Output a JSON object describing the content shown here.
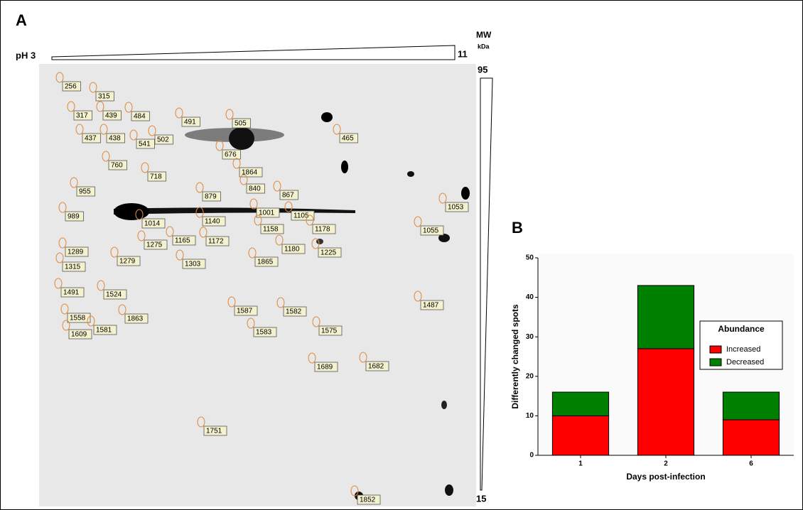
{
  "panel_a": {
    "label": "A",
    "ph_start": "pH 3",
    "ph_end": "11",
    "mw_title": "MW",
    "mw_unit": "kDa",
    "mw_top": "95",
    "mw_bottom": "15",
    "spots": [
      "256",
      "315",
      "317",
      "439",
      "484",
      "437",
      "438",
      "541",
      "502",
      "491",
      "505",
      "465",
      "760",
      "718",
      "676",
      "1864",
      "955",
      "879",
      "840",
      "867",
      "989",
      "1014",
      "1001",
      "1105",
      "1053",
      "1140",
      "1158",
      "1178",
      "1055",
      "1165",
      "1172",
      "1275",
      "1180",
      "1225",
      "1289",
      "1279",
      "1303",
      "1865",
      "1315",
      "1491",
      "1524",
      "1487",
      "1587",
      "1582",
      "1863",
      "1558",
      "1575",
      "1583",
      "1581",
      "1609",
      "1689",
      "1682",
      "1751",
      "1852"
    ]
  },
  "chart_data": {
    "type": "stacked_bar",
    "panel_label": "B",
    "ylabel": "Differently changed spots",
    "xlabel": "Days post-infection",
    "categories": [
      "1",
      "2",
      "6"
    ],
    "series": [
      {
        "name": "Increased",
        "color": "#ff0000",
        "values": [
          10,
          27,
          9
        ]
      },
      {
        "name": "Decreased",
        "color": "#008000",
        "values": [
          6,
          16,
          7
        ]
      }
    ],
    "ylim": [
      0,
      50
    ],
    "yticks": [
      0,
      10,
      20,
      30,
      40,
      50
    ],
    "legend_title": "Abundance",
    "legend_position": "right"
  }
}
